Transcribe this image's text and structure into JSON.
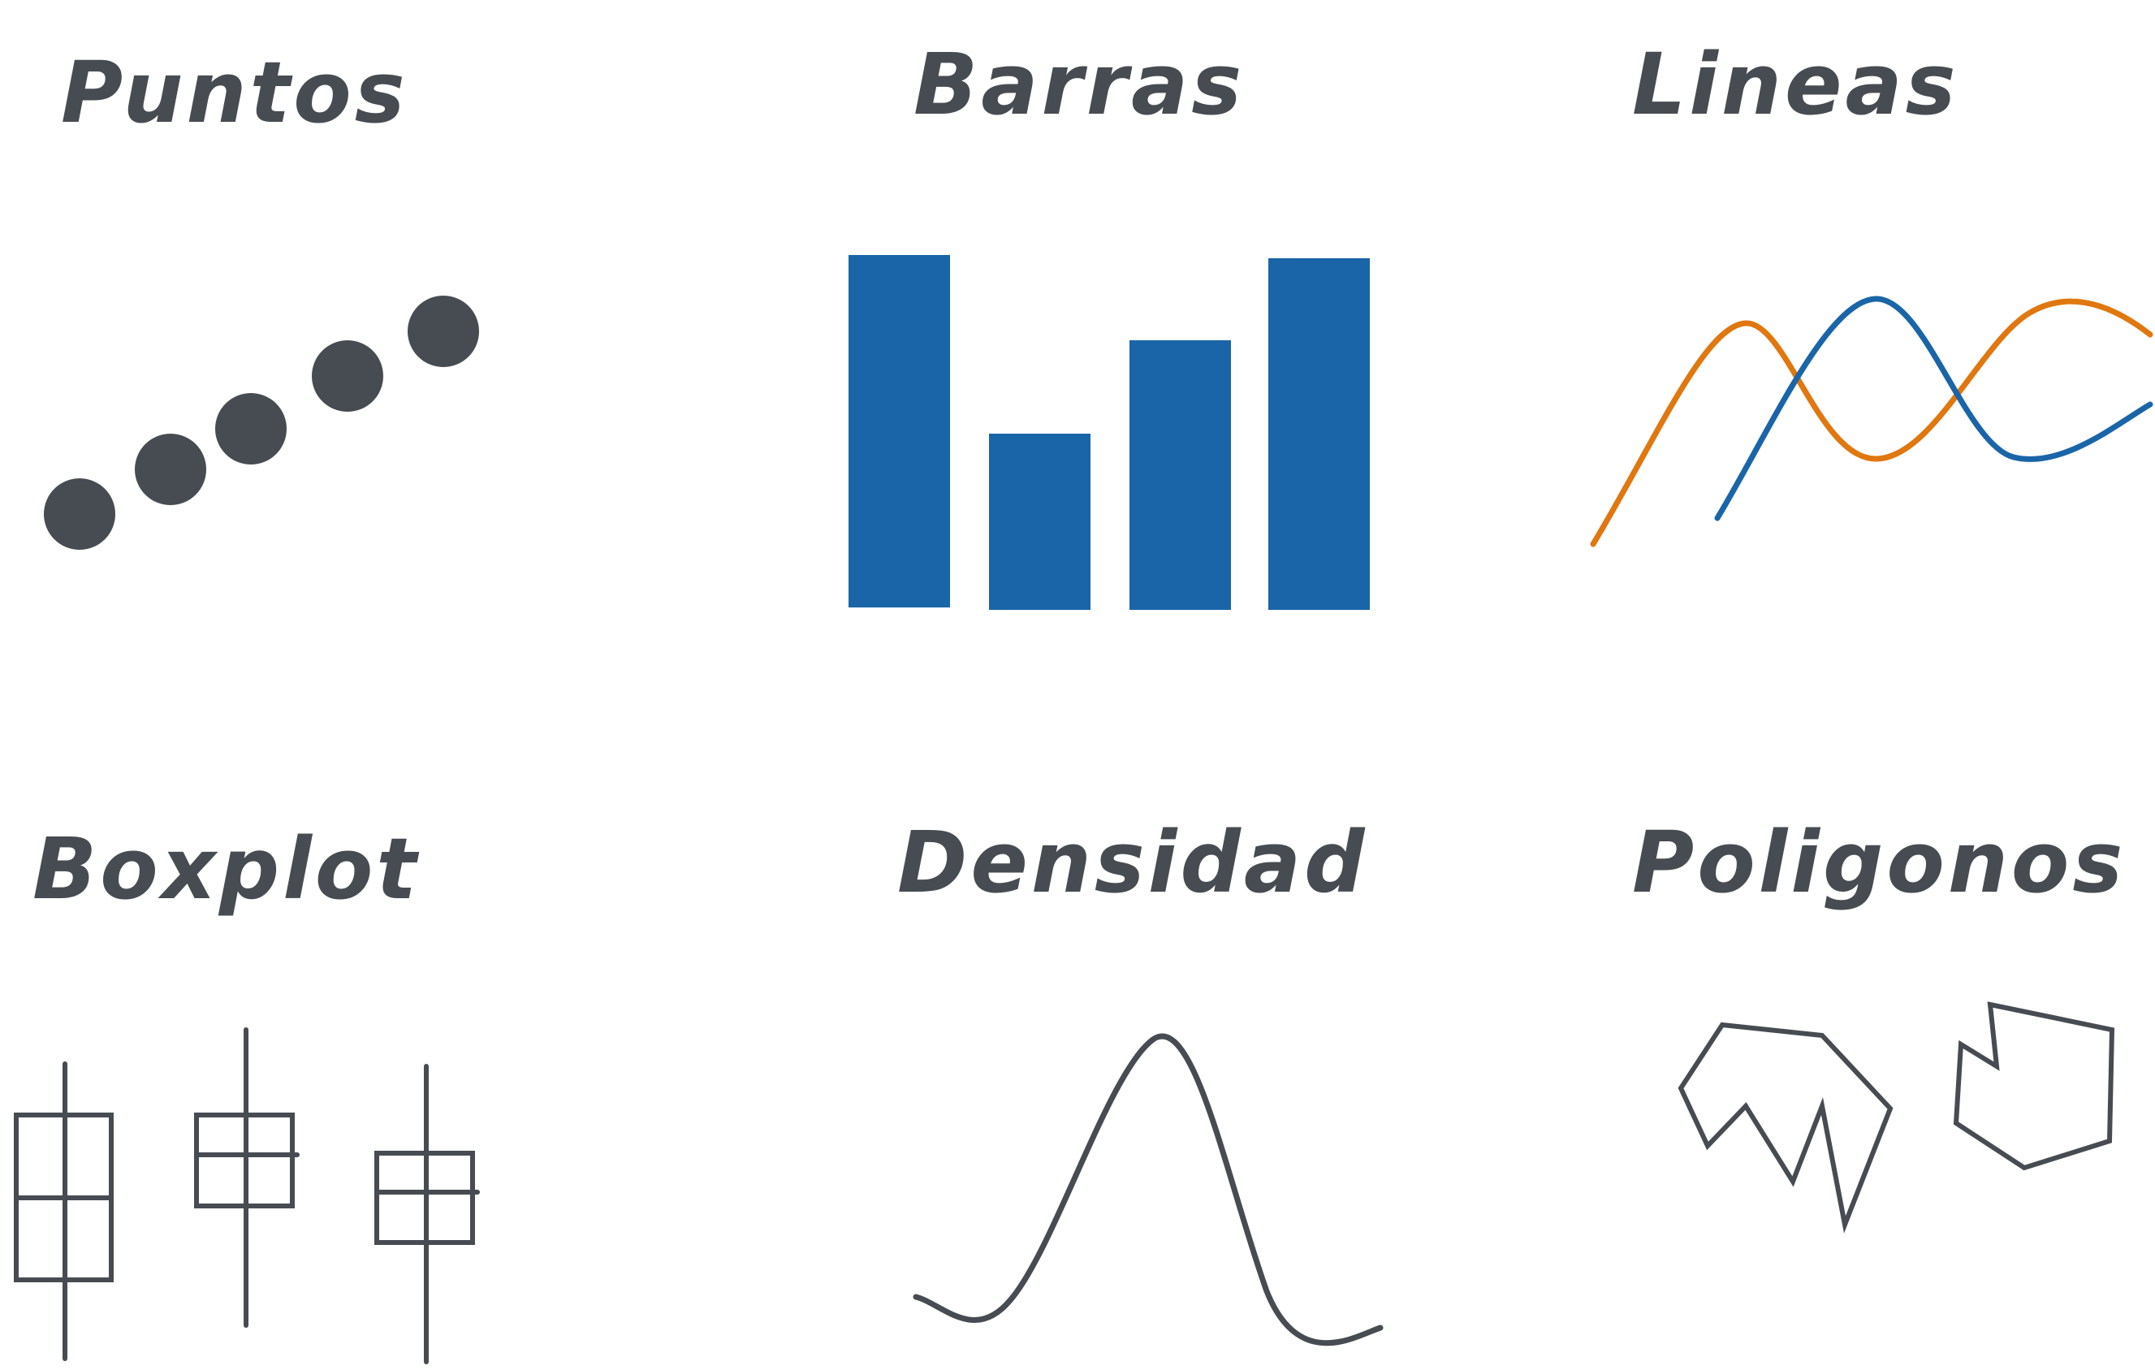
{
  "colors": {
    "ink": "#474b52",
    "bar": "#1a65a8",
    "line_orange": "#e0770f",
    "line_blue": "#1a65a8",
    "background": "#ffffff"
  },
  "panels": {
    "puntos": {
      "title": "Puntos"
    },
    "barras": {
      "title": "Barras"
    },
    "lineas": {
      "title": "Lineas"
    },
    "boxplot": {
      "title": "Boxplot"
    },
    "densidad": {
      "title": "Densidad"
    },
    "poligonos": {
      "title": "Poligonos"
    }
  }
}
